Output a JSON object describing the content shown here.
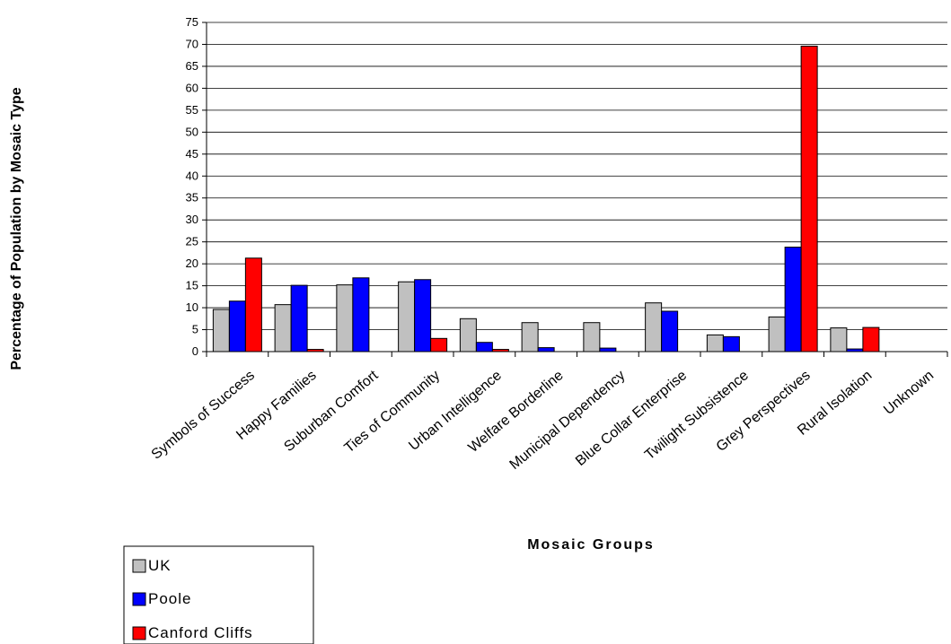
{
  "chart_data": {
    "type": "bar",
    "title": "",
    "xlabel": "Mosaic Groups",
    "ylabel": "Percentage of Population by Mosaic Type",
    "ylim": [
      0,
      75
    ],
    "ytick_step": 5,
    "grid": true,
    "legend_position": "bottom-left",
    "categories": [
      "Symbols of Success",
      "Happy Families",
      "Suburban Comfort",
      "Ties of Community",
      "Urban Intelligence",
      "Welfare Borderline",
      "Municipal Dependency",
      "Blue Collar Enterprise",
      "Twilight Subsistence",
      "Grey Perspectives",
      "Rural Isolation",
      "Unknown"
    ],
    "series": [
      {
        "name": "UK",
        "color": "#c0c0c0",
        "values": [
          9.6,
          10.7,
          15.2,
          15.9,
          7.5,
          6.6,
          6.6,
          11.1,
          3.8,
          7.9,
          5.4,
          null
        ]
      },
      {
        "name": "Poole",
        "color": "#0000ff",
        "values": [
          11.5,
          15.1,
          16.8,
          16.4,
          2.1,
          0.9,
          0.8,
          9.2,
          3.4,
          23.8,
          0.6,
          null
        ]
      },
      {
        "name": "Canford Cliffs",
        "color": "#ff0000",
        "values": [
          21.3,
          0.5,
          0.0,
          3.0,
          0.5,
          0.0,
          0.0,
          0.0,
          0.0,
          69.6,
          5.5,
          null
        ]
      }
    ]
  }
}
